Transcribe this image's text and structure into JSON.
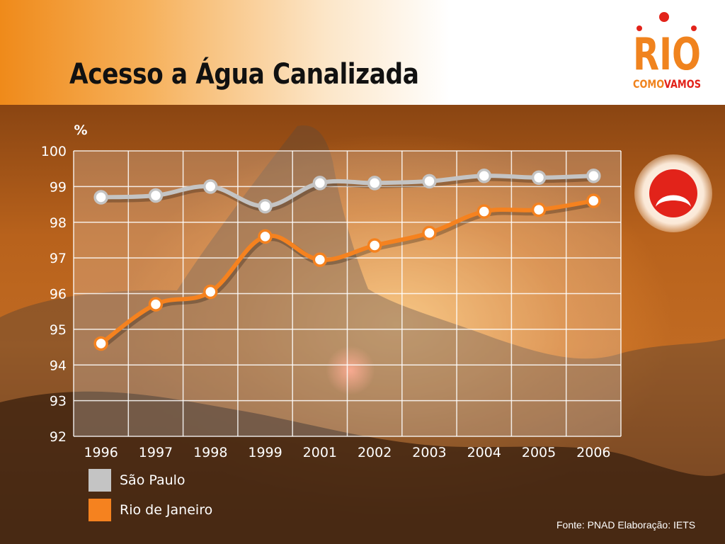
{
  "header": {
    "title": "Acesso a Água Canalizada"
  },
  "logo": {
    "word": "RIO",
    "tagline_left": "COMO",
    "tagline_right": "VAMOS",
    "color": "#f0831e",
    "accent": "#e2231a"
  },
  "status_icon": "sad-face-icon",
  "source": "Fonte: PNAD Elaboração: IETS",
  "colors": {
    "sao_paulo": "#c4c4c4",
    "rio": "#f5821f"
  },
  "chart_data": {
    "type": "line",
    "title": "Acesso a Água Canalizada",
    "ylabel": "%",
    "xlabel": "",
    "ylim": [
      92,
      100
    ],
    "yticks": [
      "92",
      "93",
      "94",
      "95",
      "96",
      "97",
      "98",
      "99",
      "100"
    ],
    "categories": [
      "1996",
      "1997",
      "1998",
      "1999",
      "2001",
      "2002",
      "2003",
      "2004",
      "2005",
      "2006"
    ],
    "grid": true,
    "legend": "bottom-left",
    "series": [
      {
        "name": "São Paulo",
        "color": "#c4c4c4",
        "values": [
          98.7,
          98.75,
          99.0,
          98.45,
          99.1,
          99.1,
          99.15,
          99.3,
          99.25,
          99.3
        ]
      },
      {
        "name": "Rio de Janeiro",
        "color": "#f5821f",
        "values": [
          94.6,
          95.7,
          96.05,
          97.6,
          96.95,
          97.35,
          97.7,
          98.3,
          98.35,
          98.6
        ]
      }
    ]
  }
}
